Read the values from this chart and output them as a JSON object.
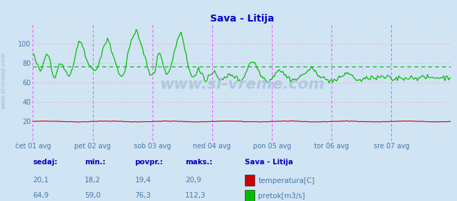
{
  "title": "Sava - Litija",
  "bg_color": "#d0e4f4",
  "title_color": "#0000cc",
  "axis_label_color": "#4477aa",
  "grid_color_h": "#ff9999",
  "grid_color_v_minor": "#dddddd",
  "vline_color": "#ff44ff",
  "avg_line_color": "#00aa00",
  "watermark_text": "www.si-vreme.com",
  "watermark_color": "#b0c8e0",
  "sidebar_text": "www.si-vreme.com",
  "xlim": [
    0,
    336
  ],
  "ylim": [
    0,
    120
  ],
  "yticks": [
    20,
    40,
    60,
    80,
    100
  ],
  "xtick_labels": [
    "čet 01 avg",
    "pet 02 avg",
    "sob 03 avg",
    "ned 04 avg",
    "pon 05 avg",
    "tor 06 avg",
    "sre 07 avg"
  ],
  "xtick_positions": [
    0,
    48,
    96,
    144,
    192,
    240,
    288
  ],
  "vline_positions": [
    0,
    48,
    96,
    144,
    192,
    240,
    288,
    336
  ],
  "avg_flow": 76.3,
  "temp_color": "#cc0000",
  "flow_color": "#00bb00",
  "legend_station": "Sava - Litija",
  "legend_temp_label": "temperatura[C]",
  "legend_flow_label": "pretok[m3/s]",
  "stats_headers": [
    "sedaj:",
    "min.:",
    "povpr.:",
    "maks.:"
  ],
  "stats_temp": [
    "20,1",
    "18,2",
    "19,4",
    "20,9"
  ],
  "stats_flow": [
    "64,9",
    "59,0",
    "76,3",
    "112,3"
  ]
}
